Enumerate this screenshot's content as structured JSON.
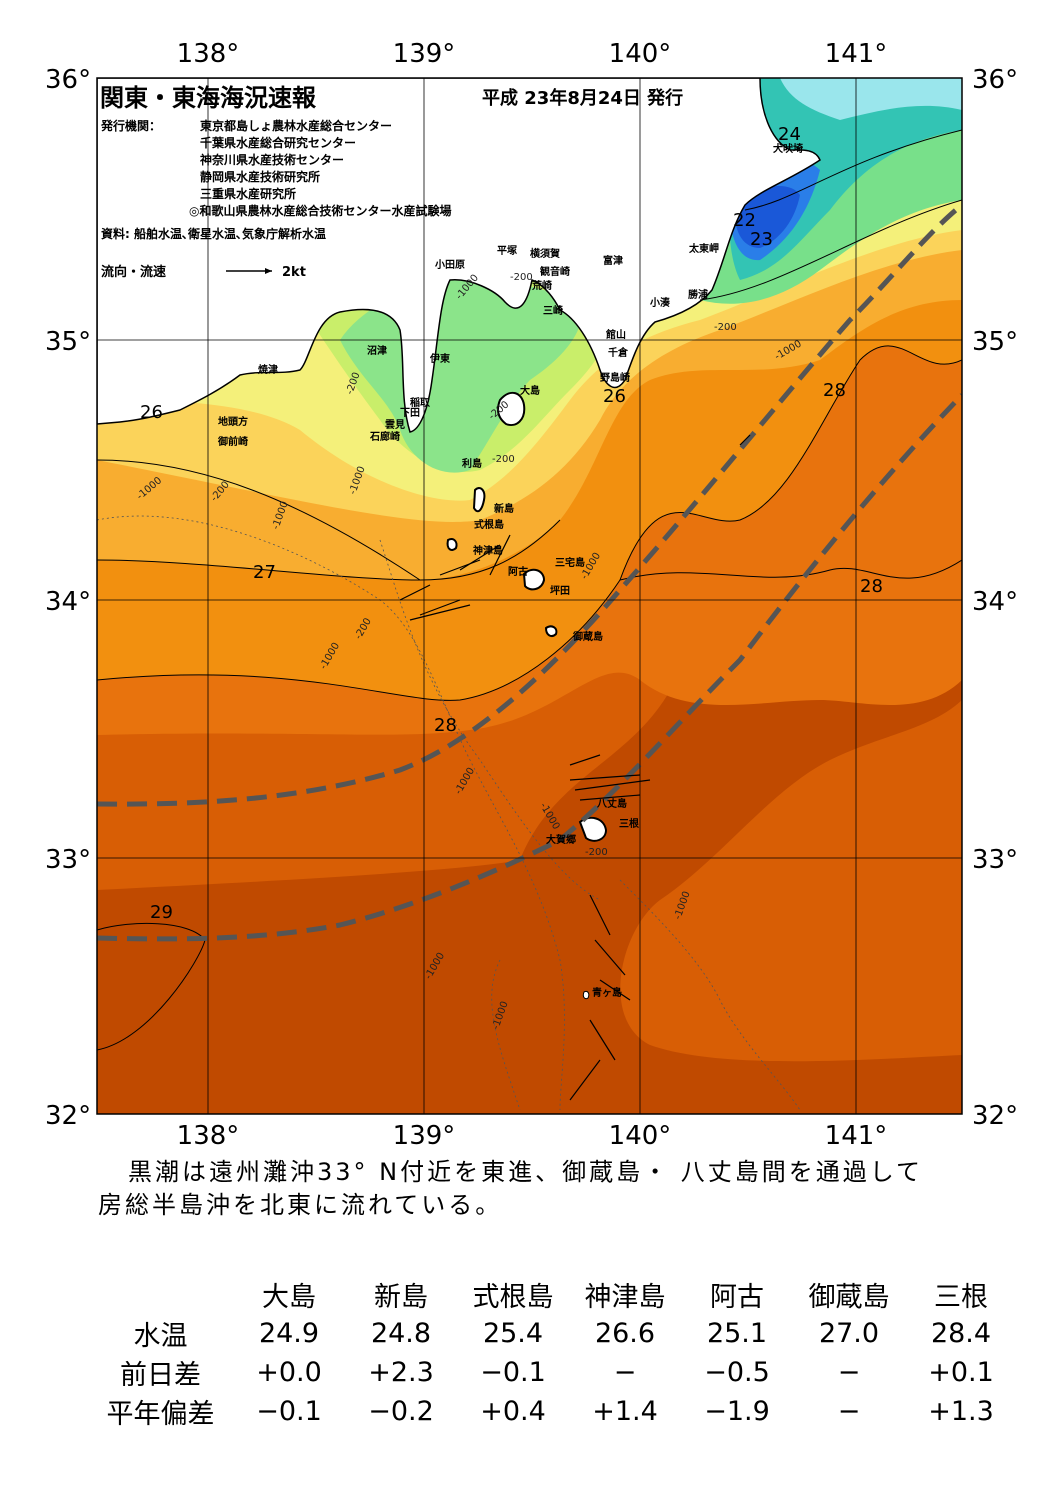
{
  "map": {
    "title": "関東・東海海況速報",
    "issue_date": "平成 23年8月24日 発行",
    "publisher_label": "発行機関：",
    "publishers": [
      "東京都島しょ農林水産総合センター",
      "千葉県水産総合研究センター",
      "神奈川県水産技術センター",
      "静岡県水産技術研究所",
      "三重県水産研究所",
      "◎和歌山県農林水産総合技術センター水産試験場"
    ],
    "sources": "資料: 船舶水温､衛星水温､気象庁解析水温",
    "legend_label": "流向・流速",
    "legend_scale": "2kt",
    "lon_ticks": [
      "138°",
      "139°",
      "140°",
      "141°"
    ],
    "lat_ticks": [
      "36°",
      "35°",
      "34°",
      "33°",
      "32°"
    ],
    "contour_labels": [
      "24",
      "22",
      "23",
      "26",
      "26",
      "27",
      "28",
      "28",
      "28",
      "29"
    ],
    "depth_labels": [
      "-200",
      "-1000"
    ],
    "places": [
      "犬吠埼",
      "太東岬",
      "勝浦",
      "小湊",
      "富津",
      "横須賀",
      "観音崎",
      "平塚",
      "荒崎",
      "三崎",
      "小田原",
      "館山",
      "千倉",
      "野島崎",
      "沼津",
      "伊東",
      "焼津",
      "稲取",
      "下田",
      "雲見",
      "石廊崎",
      "大島",
      "地頭方",
      "御前崎",
      "利島",
      "新島",
      "式根島",
      "神津島",
      "三宅島",
      "阿古",
      "坪田",
      "御蔵島",
      "八丈島",
      "三根",
      "大賀郷",
      "青ヶ島"
    ],
    "colors": {
      "kuroshio_axis": "#555555",
      "land": "#ffffff"
    }
  },
  "summary": [
    "黒潮は遠州灘沖33° N付近を東進、御蔵島・ 八丈島間を通過して",
    "房総半島沖を北東に流れている。"
  ],
  "table": {
    "headers": [
      "大島",
      "新島",
      "式根島",
      "神津島",
      "阿古",
      "御蔵島",
      "三根"
    ],
    "rows": [
      {
        "label": "水温",
        "values": [
          "24.9",
          "24.8",
          "25.4",
          "26.6",
          "25.1",
          "27.0",
          "28.4"
        ]
      },
      {
        "label": "前日差",
        "values": [
          "+0.0",
          "+2.3",
          "−0.1",
          "−",
          "−0.5",
          "−",
          "+0.1"
        ]
      },
      {
        "label": "平年偏差",
        "values": [
          "−0.1",
          "−0.2",
          "+0.4",
          "+1.4",
          "−1.9",
          "−",
          "+1.3"
        ]
      }
    ]
  }
}
